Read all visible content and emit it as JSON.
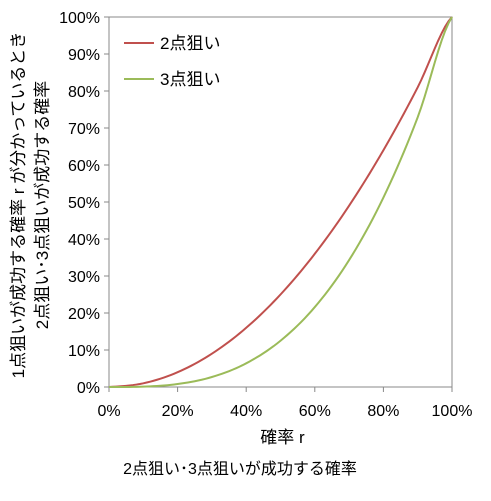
{
  "chart_data": {
    "type": "line",
    "title": "",
    "caption": "2点狙い･3点狙いが成功する確率",
    "xlabel": "確率 r",
    "ylabel_lines": [
      "1点狙いが成功する確率 r が分かっているとき",
      "2点狙い･3点狙いが成功する確率"
    ],
    "xlim": [
      0,
      1
    ],
    "ylim": [
      0,
      1
    ],
    "x_tick_labels": [
      "0%",
      "20%",
      "40%",
      "60%",
      "80%",
      "100%"
    ],
    "y_tick_labels": [
      "0%",
      "10%",
      "20%",
      "30%",
      "40%",
      "50%",
      "60%",
      "70%",
      "80%",
      "90%",
      "100%"
    ],
    "x": [
      0,
      0.1,
      0.2,
      0.3,
      0.4,
      0.5,
      0.6,
      0.7,
      0.8,
      0.9,
      1.0
    ],
    "series": [
      {
        "name": "2点狙い",
        "color": "#c0504d",
        "values": [
          0,
          0.01,
          0.04,
          0.09,
          0.16,
          0.25,
          0.36,
          0.49,
          0.64,
          0.81,
          1.0
        ]
      },
      {
        "name": "3点狙い",
        "color": "#9bbb59",
        "values": [
          0,
          0.001,
          0.008,
          0.027,
          0.064,
          0.125,
          0.216,
          0.343,
          0.512,
          0.729,
          1.0
        ]
      }
    ],
    "grid": false,
    "legend_position": "top-left"
  }
}
